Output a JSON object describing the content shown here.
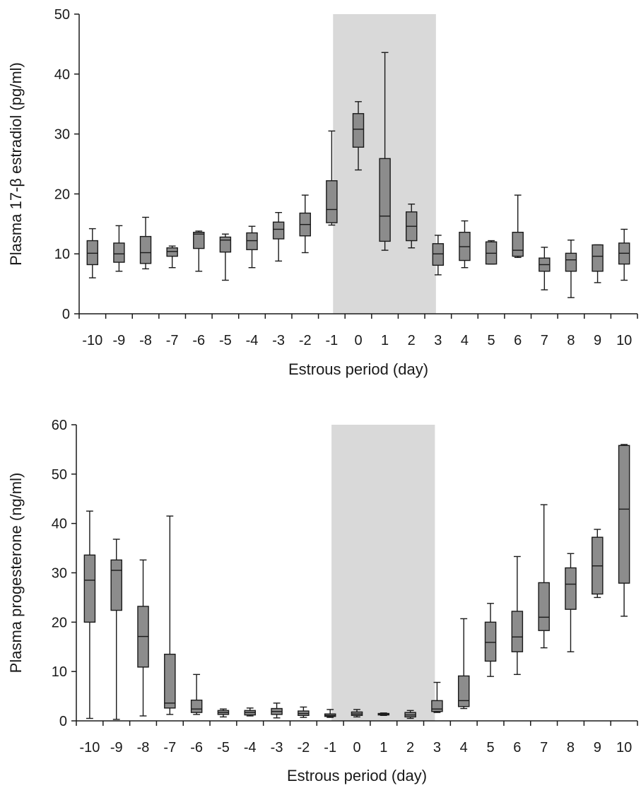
{
  "chart_data": [
    {
      "type": "box",
      "xlabel": "Estrous period (day)",
      "ylabel": "Plasma 17-β estradiol (pg/ml)",
      "ylim": [
        0,
        50
      ],
      "yticks": [
        "0",
        "10",
        "20",
        "30",
        "40",
        "50"
      ],
      "categories": [
        "-10",
        "-9",
        "-8",
        "-7",
        "-6",
        "-5",
        "-4",
        "-3",
        "-2",
        "-1",
        "0",
        "1",
        "2",
        "3",
        "4",
        "5",
        "6",
        "7",
        "8",
        "9",
        "10"
      ],
      "shaded_range": [
        "0",
        "2"
      ],
      "grid": false,
      "colors": {
        "box": "#8c8c8c",
        "shade": "#d9d9d9",
        "line": "#1a1a1a"
      },
      "boxes": [
        {
          "min": 6,
          "q1": 8.2,
          "median": 10.1,
          "q3": 12.2,
          "max": 14.2
        },
        {
          "min": 7.1,
          "q1": 8.6,
          "median": 10,
          "q3": 11.8,
          "max": 14.7
        },
        {
          "min": 7.5,
          "q1": 8.4,
          "median": 10.2,
          "q3": 12.9,
          "max": 16.1
        },
        {
          "min": 7.7,
          "q1": 9.6,
          "median": 10.4,
          "q3": 11,
          "max": 11.3
        },
        {
          "min": 7.1,
          "q1": 10.9,
          "median": 13.3,
          "q3": 13.6,
          "max": 13.8
        },
        {
          "min": 5.6,
          "q1": 10.3,
          "median": 12.3,
          "q3": 12.8,
          "max": 13.3
        },
        {
          "min": 7.7,
          "q1": 10.7,
          "median": 12.2,
          "q3": 13.5,
          "max": 14.6
        },
        {
          "min": 8.8,
          "q1": 12.5,
          "median": 14.1,
          "q3": 15.3,
          "max": 16.9
        },
        {
          "min": 10.2,
          "q1": 13,
          "median": 14.9,
          "q3": 16.8,
          "max": 19.8
        },
        {
          "min": 14.8,
          "q1": 15.2,
          "median": 17.4,
          "q3": 22.2,
          "max": 30.5
        },
        {
          "min": 24,
          "q1": 27.8,
          "median": 30.8,
          "q3": 33.4,
          "max": 35.4
        },
        {
          "min": 10.6,
          "q1": 12.1,
          "median": 16.3,
          "q3": 25.9,
          "max": 43.6
        },
        {
          "min": 11,
          "q1": 12.2,
          "median": 14.6,
          "q3": 17,
          "max": 18.3
        },
        {
          "min": 6.5,
          "q1": 8.1,
          "median": 10,
          "q3": 11.7,
          "max": 13.1
        },
        {
          "min": 7.7,
          "q1": 8.9,
          "median": 11.2,
          "q3": 13.6,
          "max": 15.5
        },
        {
          "min": 8.3,
          "q1": 8.3,
          "median": 10.1,
          "q3": 12,
          "max": 12.2
        },
        {
          "min": 9.4,
          "q1": 9.6,
          "median": 10.6,
          "q3": 13.6,
          "max": 19.8
        },
        {
          "min": 4,
          "q1": 7.1,
          "median": 8.2,
          "q3": 9.3,
          "max": 11.1
        },
        {
          "min": 2.7,
          "q1": 7.1,
          "median": 9,
          "q3": 10.1,
          "max": 12.3
        },
        {
          "min": 5.2,
          "q1": 7.1,
          "median": 9.6,
          "q3": 11.5,
          "max": 11.5
        },
        {
          "min": 5.6,
          "q1": 8.3,
          "median": 10.1,
          "q3": 11.8,
          "max": 14.1
        }
      ]
    },
    {
      "type": "box",
      "xlabel": "Estrous period (day)",
      "ylabel": "Plasma progesterone (ng/ml)",
      "ylim": [
        0,
        60
      ],
      "yticks": [
        "0",
        "10",
        "20",
        "30",
        "40",
        "50",
        "60"
      ],
      "categories": [
        "-10",
        "-9",
        "-8",
        "-7",
        "-6",
        "-5",
        "-4",
        "-3",
        "-2",
        "-1",
        "0",
        "1",
        "2",
        "3",
        "4",
        "5",
        "6",
        "7",
        "8",
        "9",
        "10"
      ],
      "shaded_range": [
        "0",
        "2"
      ],
      "grid": false,
      "colors": {
        "box": "#8c8c8c",
        "shade": "#d9d9d9",
        "line": "#1a1a1a"
      },
      "boxes": [
        {
          "min": 0.5,
          "q1": 20,
          "median": 28.5,
          "q3": 33.6,
          "max": 42.5
        },
        {
          "min": 0.3,
          "q1": 22.4,
          "median": 30.5,
          "q3": 32.6,
          "max": 36.8
        },
        {
          "min": 1,
          "q1": 10.9,
          "median": 17.1,
          "q3": 23.2,
          "max": 32.6
        },
        {
          "min": 1.3,
          "q1": 2.6,
          "median": 3.6,
          "q3": 13.5,
          "max": 41.5
        },
        {
          "min": 1.3,
          "q1": 1.7,
          "median": 2.4,
          "q3": 4.2,
          "max": 9.4
        },
        {
          "min": 0.8,
          "q1": 1.3,
          "median": 1.7,
          "q3": 2.1,
          "max": 2.4
        },
        {
          "min": 1,
          "q1": 1.2,
          "median": 1.7,
          "q3": 2.1,
          "max": 2.6
        },
        {
          "min": 0.6,
          "q1": 1.3,
          "median": 1.9,
          "q3": 2.5,
          "max": 3.6
        },
        {
          "min": 0.7,
          "q1": 1.1,
          "median": 1.5,
          "q3": 2,
          "max": 2.8
        },
        {
          "min": 0.7,
          "q1": 0.9,
          "median": 1.1,
          "q3": 1.4,
          "max": 2.3
        },
        {
          "min": 0.8,
          "q1": 1.1,
          "median": 1.4,
          "q3": 1.8,
          "max": 2.3
        },
        {
          "min": 1.1,
          "q1": 1.2,
          "median": 1.4,
          "q3": 1.5,
          "max": 1.6
        },
        {
          "min": 0.5,
          "q1": 0.8,
          "median": 1.2,
          "q3": 1.7,
          "max": 2.1
        },
        {
          "min": 1.7,
          "q1": 1.9,
          "median": 2.4,
          "q3": 4.1,
          "max": 7.8
        },
        {
          "min": 2.5,
          "q1": 2.9,
          "median": 4.1,
          "q3": 9.1,
          "max": 20.7
        },
        {
          "min": 9,
          "q1": 12.1,
          "median": 15.9,
          "q3": 20,
          "max": 23.8
        },
        {
          "min": 9.4,
          "q1": 14,
          "median": 17,
          "q3": 22.2,
          "max": 33.3
        },
        {
          "min": 14.8,
          "q1": 18.3,
          "median": 21,
          "q3": 28,
          "max": 43.8
        },
        {
          "min": 14,
          "q1": 22.6,
          "median": 27.7,
          "q3": 31,
          "max": 33.9
        },
        {
          "min": 25,
          "q1": 25.7,
          "median": 31.4,
          "q3": 37.2,
          "max": 38.8
        },
        {
          "min": 21.2,
          "q1": 27.9,
          "median": 42.9,
          "q3": 55.8,
          "max": 56
        }
      ]
    }
  ]
}
